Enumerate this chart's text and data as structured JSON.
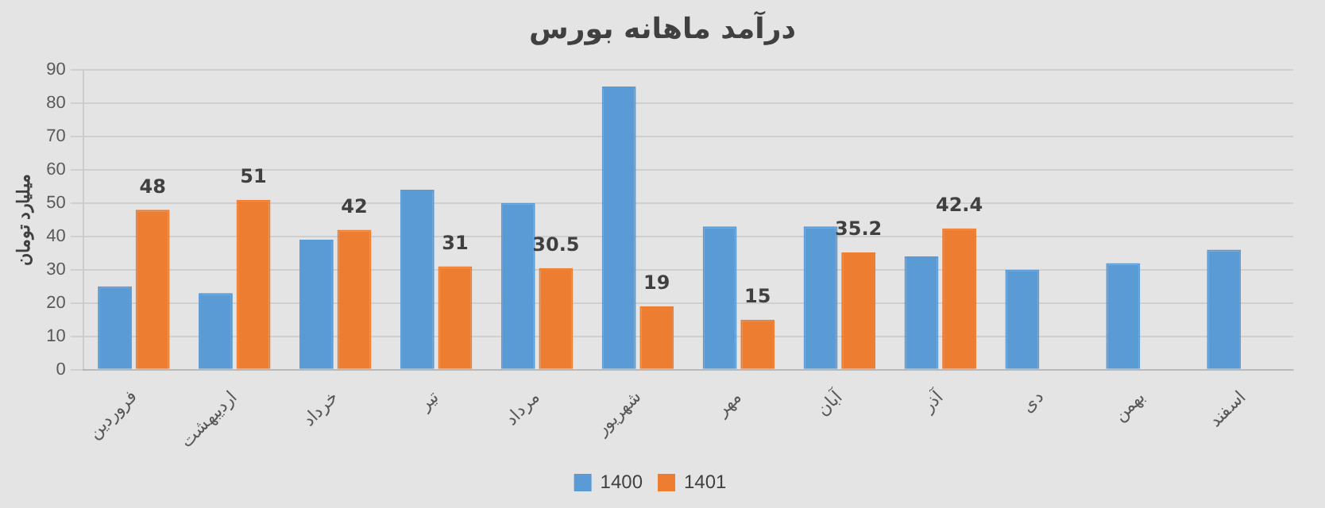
{
  "chart_data": {
    "type": "bar",
    "title": "درآمد ماهانه بورس",
    "ylabel": "میلیارد تومان",
    "categories": [
      "فروردین",
      "اردیبهشت",
      "خرداد",
      "تیر",
      "مرداد",
      "شهریور",
      "مهر",
      "آبان",
      "آذر",
      "دی",
      "بهمن",
      "اسفند"
    ],
    "series": [
      {
        "name": "1400",
        "color": "#5b9bd5",
        "values": [
          25,
          23,
          39,
          54,
          50,
          85,
          43,
          43,
          34,
          30,
          32,
          36
        ]
      },
      {
        "name": "1401",
        "color": "#ed7d31",
        "values": [
          48,
          51,
          42,
          31,
          30.5,
          19,
          15,
          35.2,
          42.4,
          null,
          null,
          null
        ],
        "value_labels": [
          "48",
          "51",
          "42",
          "31",
          "30.5",
          "19",
          "15",
          "35.2",
          "42.4",
          null,
          null,
          null
        ]
      }
    ],
    "ylim": [
      0,
      90
    ],
    "yticks": [
      0,
      10,
      20,
      30,
      40,
      50,
      60,
      70,
      80,
      90
    ],
    "grid": "y",
    "legend": "bottom"
  }
}
